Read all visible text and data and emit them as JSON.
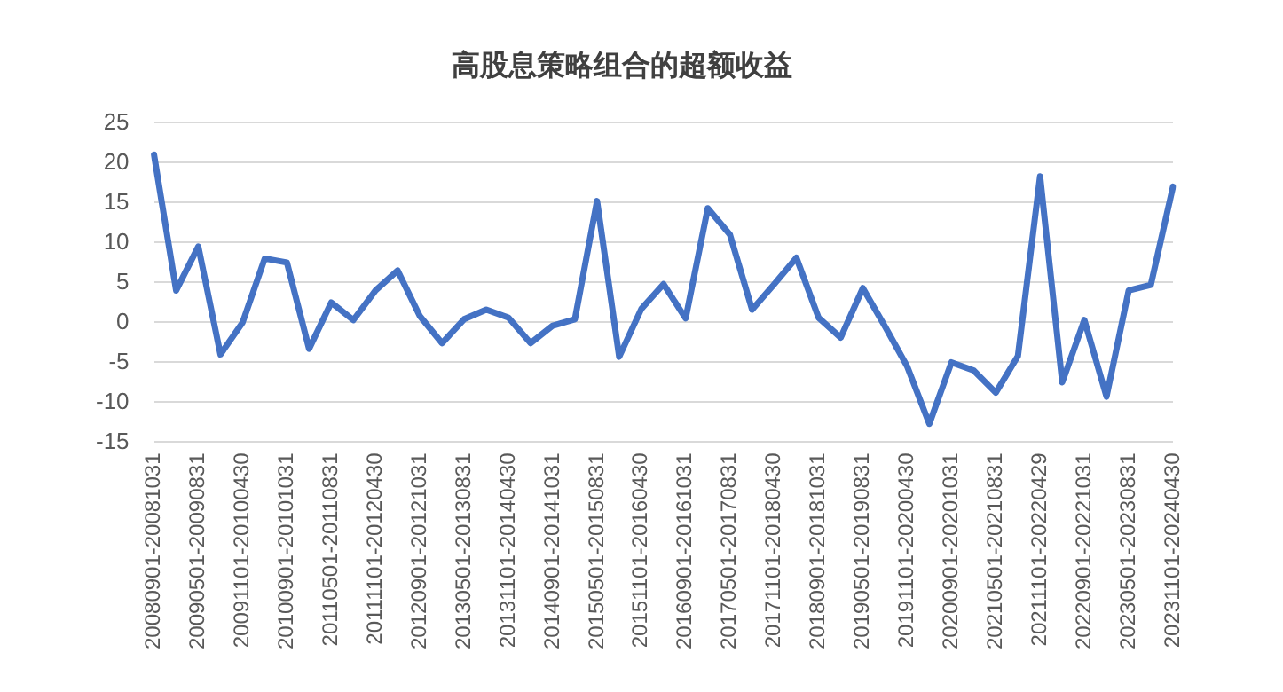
{
  "chart_data": {
    "type": "line",
    "title": "高股息策略组合的超额收益",
    "categories": [
      "20080901-20081031",
      null,
      "20090501-20090831",
      null,
      "20091101-20100430",
      null,
      "20100901-20101031",
      null,
      "20110501-20110831",
      null,
      "20111101-20120430",
      null,
      "20120901-20121031",
      null,
      "20130501-20130831",
      null,
      "20131101-20140430",
      null,
      "20140901-20141031",
      null,
      "20150501-20150831",
      null,
      "20151101-20160430",
      null,
      "20160901-20161031",
      null,
      "20170501-20170831",
      null,
      "20171101-20180430",
      null,
      "20180901-20181031",
      null,
      "20190501-20190831",
      null,
      "20191101-20200430",
      null,
      "20200901-20201031",
      null,
      "20210501-20210831",
      null,
      "20211101-20220429",
      null,
      "20220901-20221031",
      null,
      "20230501-20230831",
      null,
      "20231101-20240430"
    ],
    "series": [
      {
        "color": "#4472c4",
        "values": [
          21,
          4,
          9.5,
          -4,
          0,
          8,
          7.5,
          -3.3,
          2.5,
          0.3,
          4,
          6.5,
          0.8,
          -2.6,
          0.4,
          1.6,
          0.6,
          -2.6,
          -0.4,
          0.4,
          15.2,
          -4.3,
          1.7,
          4.8,
          0.5,
          14.3,
          11,
          1.6,
          4.8,
          8.1,
          0.6,
          -1.9,
          4.3,
          -0.5,
          -5.5,
          -12.7,
          -5,
          -6,
          -8.8,
          -4.2,
          18.3,
          -7.5,
          0.3,
          -9.3,
          4,
          4.7,
          17
        ]
      }
    ],
    "ylim": [
      -15,
      25
    ],
    "yticks": [
      -15,
      -10,
      -5,
      0,
      5,
      10,
      15,
      20,
      25
    ],
    "grid": "y",
    "legend": false,
    "marker": "none",
    "line_style": "solid"
  }
}
